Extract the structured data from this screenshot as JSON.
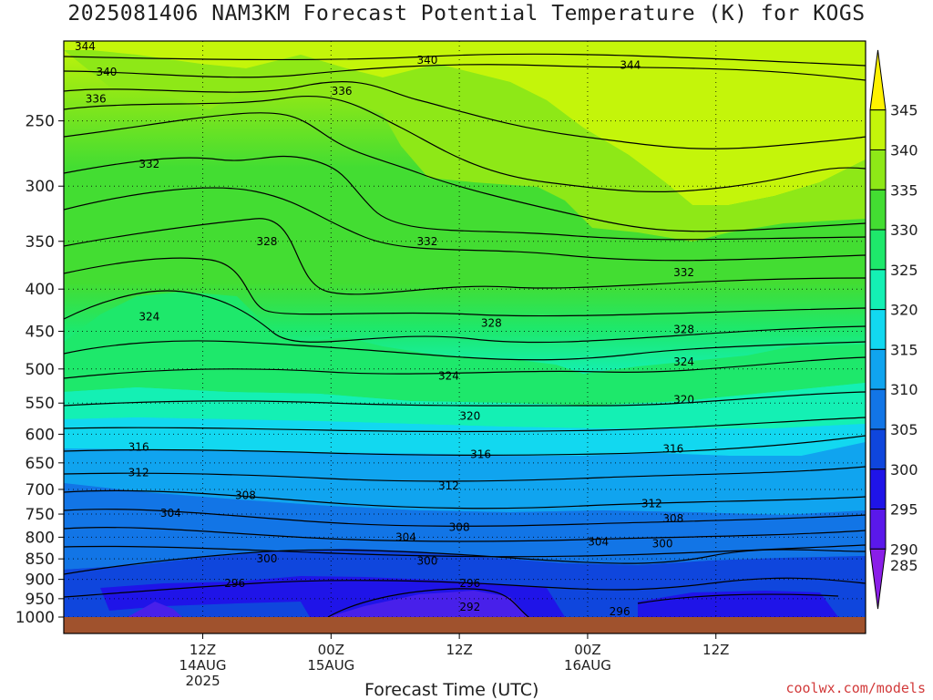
{
  "chart_data": {
    "type": "heatmap",
    "title": "2025081406 NAM3KM Forecast Potential Temperature (K) for KOGS",
    "xlabel": "Forecast Time (UTC)",
    "ylabel": "",
    "y_scale": "log",
    "y_inverted": true,
    "yticks": [
      250,
      300,
      350,
      400,
      450,
      500,
      550,
      600,
      650,
      700,
      750,
      800,
      850,
      900,
      950,
      1000
    ],
    "ylim": [
      1000,
      200
    ],
    "x_range_hours": [
      -7,
      68
    ],
    "xticks": [
      {
        "hour": 6,
        "label": "12Z",
        "sub1": "14AUG",
        "sub2": "2025"
      },
      {
        "hour": 18,
        "label": "00Z",
        "sub1": "15AUG",
        "sub2": ""
      },
      {
        "hour": 30,
        "label": "12Z",
        "sub1": "",
        "sub2": ""
      },
      {
        "hour": 42,
        "label": "00Z",
        "sub1": "16AUG",
        "sub2": ""
      },
      {
        "hour": 54,
        "label": "12Z",
        "sub1": "",
        "sub2": ""
      }
    ],
    "grid": true,
    "colorbar": {
      "levels": [
        345,
        340,
        335,
        330,
        325,
        320,
        315,
        310,
        305,
        300,
        295,
        290,
        285
      ],
      "colors": [
        "#fff200",
        "#c4f50a",
        "#8ee817",
        "#43dd32",
        "#1ee86b",
        "#14f0b4",
        "#12d8f0",
        "#10a4ef",
        "#1275e6",
        "#0f46dd",
        "#1f14e8",
        "#5a18ea",
        "#8a1ee8"
      ]
    },
    "contour_labels": [
      {
        "value": "344",
        "hour": -5,
        "p": 203
      },
      {
        "value": "340",
        "hour": -3,
        "p": 218
      },
      {
        "value": "336",
        "hour": -4,
        "p": 235
      },
      {
        "value": "336",
        "hour": 19,
        "p": 230
      },
      {
        "value": "340",
        "hour": 27,
        "p": 211
      },
      {
        "value": "344",
        "hour": 46,
        "p": 214
      },
      {
        "value": "332",
        "hour": 1,
        "p": 282
      },
      {
        "value": "328",
        "hour": 12,
        "p": 350
      },
      {
        "value": "332",
        "hour": 27,
        "p": 350
      },
      {
        "value": "332",
        "hour": 51,
        "p": 382
      },
      {
        "value": "324",
        "hour": 1,
        "p": 432
      },
      {
        "value": "328",
        "hour": 33,
        "p": 440
      },
      {
        "value": "328",
        "hour": 51,
        "p": 448
      },
      {
        "value": "324",
        "hour": 51,
        "p": 490
      },
      {
        "value": "324",
        "hour": 29,
        "p": 510
      },
      {
        "value": "320",
        "hour": -6,
        "p": 568
      },
      {
        "value": "320",
        "hour": 31,
        "p": 570
      },
      {
        "value": "320",
        "hour": 51,
        "p": 545
      },
      {
        "value": "316",
        "hour": 0,
        "p": 622
      },
      {
        "value": "316",
        "hour": 32,
        "p": 635
      },
      {
        "value": "316",
        "hour": 50,
        "p": 625
      },
      {
        "value": "312",
        "hour": 0,
        "p": 668
      },
      {
        "value": "312",
        "hour": 29,
        "p": 693
      },
      {
        "value": "312",
        "hour": 48,
        "p": 728
      },
      {
        "value": "308",
        "hour": 10,
        "p": 712
      },
      {
        "value": "308",
        "hour": 30,
        "p": 778
      },
      {
        "value": "308",
        "hour": 50,
        "p": 760
      },
      {
        "value": "304",
        "hour": 3,
        "p": 748
      },
      {
        "value": "304",
        "hour": 25,
        "p": 800
      },
      {
        "value": "304",
        "hour": 43,
        "p": 810
      },
      {
        "value": "300",
        "hour": 12,
        "p": 850
      },
      {
        "value": "300",
        "hour": 27,
        "p": 855
      },
      {
        "value": "300",
        "hour": 49,
        "p": 815
      },
      {
        "value": "296",
        "hour": 9,
        "p": 910
      },
      {
        "value": "296",
        "hour": 31,
        "p": 910
      },
      {
        "value": "296",
        "hour": 45,
        "p": 985
      },
      {
        "value": "292",
        "hour": 31,
        "p": 972
      }
    ]
  },
  "credit": "coolwx.com/models"
}
